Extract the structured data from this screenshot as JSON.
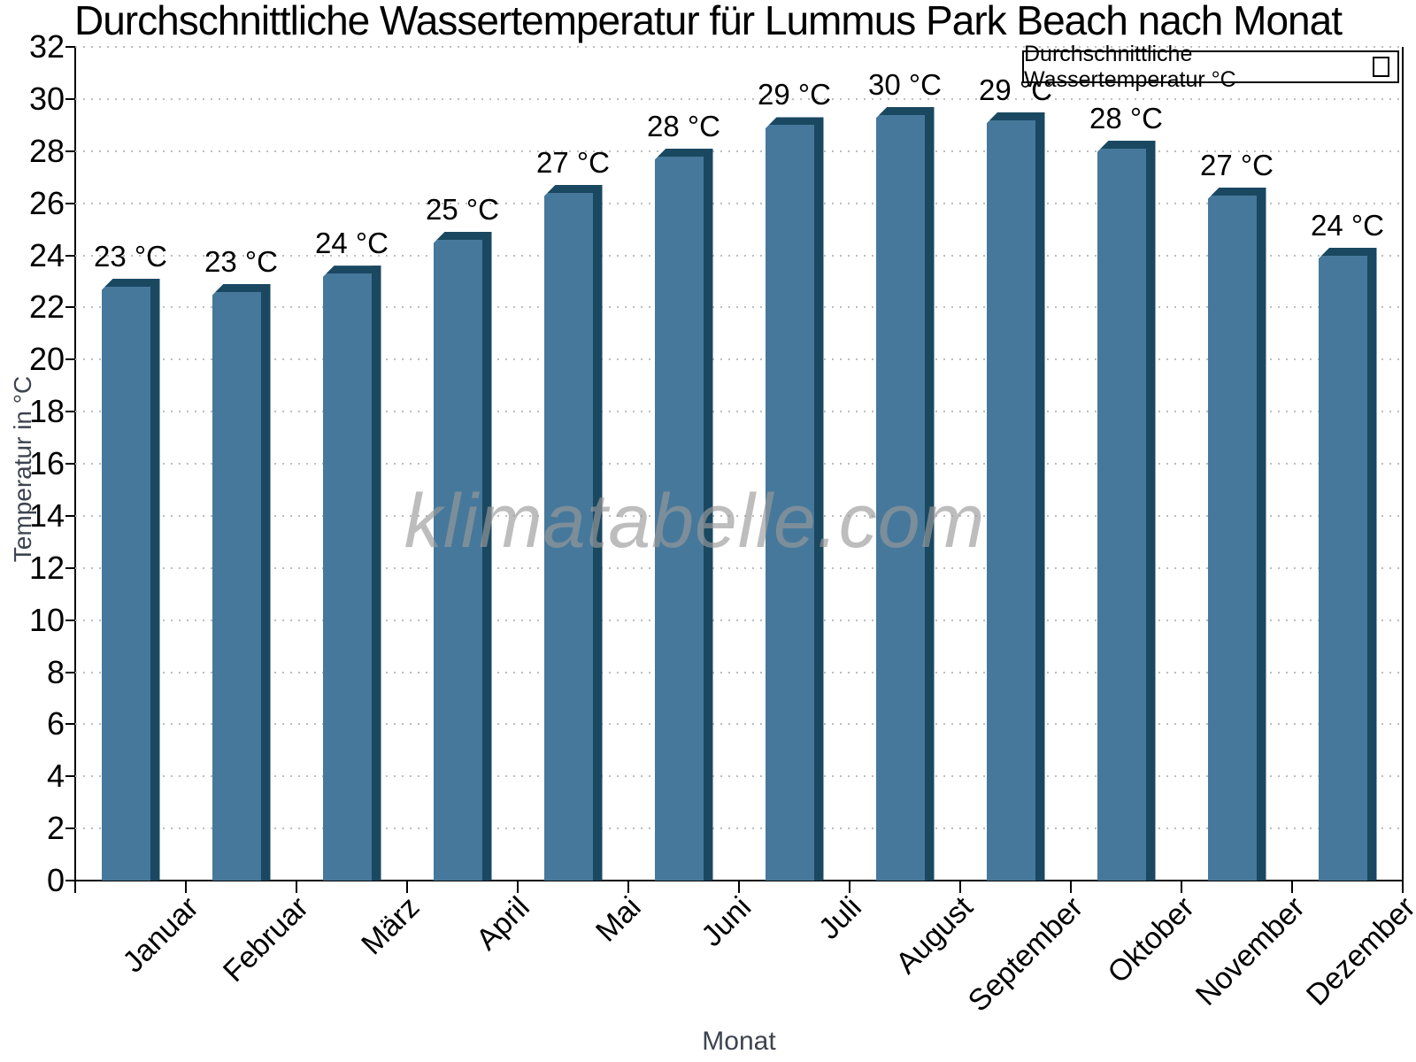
{
  "title": "Durchschnittliche Wassertemperatur für Lummus Park Beach nach Monat",
  "legend": {
    "label": "Durchschnittliche Wassertemperatur °C"
  },
  "watermark": "klimatabelle.com",
  "chart_data": {
    "type": "bar",
    "title": "Durchschnittliche Wassertemperatur für Lummus Park Beach nach Monat",
    "categories": [
      "Januar",
      "Februar",
      "März",
      "April",
      "Mai",
      "Juni",
      "Juli",
      "August",
      "September",
      "Oktober",
      "November",
      "Dezember"
    ],
    "series": [
      {
        "name": "Durchschnittliche Wassertemperatur °C",
        "values": [
          23.1,
          22.9,
          23.6,
          24.9,
          26.7,
          28.1,
          29.3,
          29.7,
          29.5,
          28.4,
          26.6,
          24.3
        ],
        "value_labels": [
          "23 °C",
          "23 °C",
          "24 °C",
          "25 °C",
          "27 °C",
          "28 °C",
          "29 °C",
          "30 °C",
          "29 °C",
          "28 °C",
          "27 °C",
          "24 °C"
        ]
      }
    ],
    "xlabel": "Monat",
    "ylabel": "Temperatur in °C",
    "ylim": [
      0,
      32
    ],
    "ytick_step": 2,
    "grid": "horizontal-dotted",
    "legend_position": "top-right",
    "colors": {
      "bar_fill": "#46789B",
      "bar_edge_dark": "#1A4861",
      "gridline": "#bdbdbd",
      "axis": "#000000",
      "axis_title_text": "#3d4450",
      "watermark_text": "#9a9a9a"
    }
  }
}
